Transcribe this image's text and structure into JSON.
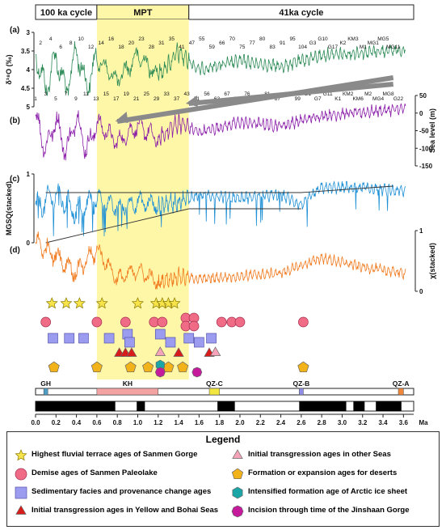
{
  "header": {
    "cycles": [
      {
        "label": "100 ka cycle",
        "range": [
          0.0,
          0.6
        ]
      },
      {
        "label": "MPT",
        "range": [
          0.6,
          1.5
        ]
      },
      {
        "label": "41ka cycle",
        "range": [
          1.5,
          3.7
        ]
      }
    ]
  },
  "highlight": {
    "x_range": [
      0.6,
      1.5
    ],
    "color": "#fff7a8"
  },
  "chart_data": [
    {
      "id": "a",
      "panel_label": "(a)",
      "type": "line",
      "ylabel": "δ¹⁸O (‰)",
      "yticks": [
        "3",
        "3.5",
        "4",
        "4.5",
        "5"
      ],
      "ylim_reversed": [
        2.6,
        5.2
      ],
      "color": "#2e8b57",
      "mis_labels": [
        "1",
        "2",
        "3",
        "4",
        "5",
        "6",
        "7",
        "8",
        "9",
        "10",
        "11",
        "12",
        "13",
        "14",
        "15",
        "16",
        "17",
        "18",
        "19",
        "20",
        "21",
        "23",
        "25",
        "28",
        "29",
        "31",
        "33",
        "35",
        "37",
        "41",
        "43",
        "47",
        "51",
        "55",
        "56",
        "59",
        "63",
        "66",
        "67",
        "70",
        "71",
        "75",
        "76",
        "77",
        "79",
        "80",
        "81",
        "83",
        "87",
        "91",
        "94",
        "95",
        "99",
        "104",
        "G1",
        "G3",
        "G7",
        "G10",
        "G11",
        "G17",
        "K1",
        "K2",
        "KM2",
        "KM3",
        "KM6",
        "M1",
        "M2",
        "MG1",
        "MG4",
        "MG5",
        "MG8",
        "MG11",
        "G22"
      ],
      "series_sample": [
        [
          0.0,
          3.3
        ],
        [
          0.1,
          4.6
        ],
        [
          0.2,
          3.4
        ],
        [
          0.3,
          4.7
        ],
        [
          0.4,
          3.2
        ],
        [
          0.5,
          4.5
        ],
        [
          0.6,
          3.5
        ],
        [
          0.8,
          4.3
        ],
        [
          1.0,
          3.4
        ],
        [
          1.2,
          4.1
        ],
        [
          1.4,
          3.3
        ],
        [
          1.6,
          3.9
        ],
        [
          2.0,
          3.6
        ],
        [
          2.4,
          3.8
        ],
        [
          2.8,
          3.4
        ],
        [
          3.2,
          3.3
        ],
        [
          3.6,
          3.2
        ]
      ]
    },
    {
      "id": "b",
      "panel_label": "(b)",
      "type": "line",
      "ylabel": "Sea level (m)",
      "yticks": [
        "50",
        "0",
        "-50",
        "-100",
        "-150"
      ],
      "ylim": [
        -160,
        50
      ],
      "color": "#8b1fa9",
      "series_sample": [
        [
          0.0,
          -10
        ],
        [
          0.1,
          -110
        ],
        [
          0.2,
          -20
        ],
        [
          0.3,
          -120
        ],
        [
          0.4,
          -10
        ],
        [
          0.5,
          -115
        ],
        [
          0.6,
          -30
        ],
        [
          0.8,
          -90
        ],
        [
          1.0,
          -40
        ],
        [
          1.2,
          -80
        ],
        [
          1.4,
          -30
        ],
        [
          1.6,
          -60
        ],
        [
          2.0,
          -30
        ],
        [
          2.4,
          -40
        ],
        [
          2.8,
          -10
        ],
        [
          3.2,
          0
        ],
        [
          3.6,
          10
        ]
      ]
    },
    {
      "id": "c",
      "panel_label": "(c)",
      "type": "line",
      "ylabel": "MGSQ(stacked)",
      "yticks": [
        "1",
        "0"
      ],
      "ylim": [
        0,
        1
      ],
      "color": "#1e90d6",
      "trend_color": "#333333",
      "series_sample": [
        [
          0.0,
          0.5
        ],
        [
          0.2,
          0.7
        ],
        [
          0.4,
          0.45
        ],
        [
          0.6,
          0.65
        ],
        [
          0.8,
          0.5
        ],
        [
          1.0,
          0.6
        ],
        [
          1.2,
          0.55
        ],
        [
          1.4,
          0.6
        ],
        [
          1.6,
          0.7
        ],
        [
          2.0,
          0.65
        ],
        [
          2.4,
          0.7
        ],
        [
          2.6,
          0.55
        ],
        [
          2.8,
          0.8
        ],
        [
          3.2,
          0.8
        ],
        [
          3.6,
          0.75
        ]
      ]
    },
    {
      "id": "d",
      "panel_label": "(d)",
      "type": "line",
      "ylabel": "χ(stacked)",
      "yticks": [
        "1",
        "0"
      ],
      "ylim": [
        0,
        1
      ],
      "color": "#f07a1e",
      "series_sample": [
        [
          0.0,
          0.8
        ],
        [
          0.2,
          0.6
        ],
        [
          0.4,
          0.3
        ],
        [
          0.6,
          0.7
        ],
        [
          0.8,
          0.2
        ],
        [
          1.0,
          0.35
        ],
        [
          1.2,
          0.15
        ],
        [
          1.4,
          0.25
        ],
        [
          1.6,
          0.2
        ],
        [
          2.0,
          0.25
        ],
        [
          2.4,
          0.3
        ],
        [
          2.8,
          0.55
        ],
        [
          3.2,
          0.4
        ],
        [
          3.6,
          0.3
        ]
      ]
    }
  ],
  "events": {
    "terrace": {
      "color": "#f7e34a",
      "ages": [
        0.16,
        0.3,
        0.43,
        0.65,
        1.0,
        1.18,
        1.24,
        1.3,
        1.36
      ]
    },
    "paleolake": {
      "color": "#ef6b86",
      "ages": [
        [
          0.1,
          0
        ],
        [
          0.6,
          0
        ],
        [
          0.88,
          0
        ],
        [
          1.16,
          0
        ],
        [
          1.24,
          0
        ],
        [
          1.47,
          -1
        ],
        [
          1.47,
          1
        ],
        [
          1.55,
          -1
        ],
        [
          1.55,
          1
        ],
        [
          1.82,
          0
        ],
        [
          1.92,
          0
        ],
        [
          2.0,
          0
        ],
        [
          2.62,
          0
        ]
      ]
    },
    "facies": {
      "color": "#9b9cf0",
      "ages": [
        [
          0.17,
          0
        ],
        [
          0.33,
          0
        ],
        [
          0.47,
          0
        ],
        [
          0.72,
          0
        ],
        [
          0.9,
          -1
        ],
        [
          0.92,
          1
        ],
        [
          1.22,
          -1
        ],
        [
          1.32,
          1
        ],
        [
          1.5,
          0
        ],
        [
          1.6,
          1
        ],
        [
          1.72,
          0
        ]
      ]
    },
    "yellow_bohai": {
      "color": "#d81b1b",
      "ages": [
        0.82,
        0.88,
        0.94,
        1.4,
        1.7
      ]
    },
    "other_seas": {
      "color": "#f4a3b8",
      "ages": [
        1.22,
        1.76
      ]
    },
    "deserts": {
      "color": "#f2b21a",
      "ages": [
        0.18,
        0.6,
        0.93,
        1.1,
        1.3,
        1.44,
        2.62
      ]
    },
    "arctic": {
      "color": "#1aa6a6",
      "ages": [
        1.22
      ]
    },
    "jinshaan": {
      "color": "#c51a9c",
      "ages": [
        1.22,
        1.58
      ]
    }
  },
  "units": {
    "labels": [
      {
        "name": "GH",
        "bar_range": [
          0.08,
          0.12
        ],
        "color": "#4f9ec7"
      },
      {
        "name": "KH",
        "bar_range": [
          0.6,
          1.2
        ],
        "color": "#f4a3a3"
      },
      {
        "name": "QZ-C",
        "bar_range": [
          1.7,
          1.8
        ],
        "color": "#f2e640"
      },
      {
        "name": "QZ-B",
        "bar_range": [
          2.58,
          2.62
        ],
        "color": "#8e8ee8"
      },
      {
        "name": "QZ-A",
        "bar_range": [
          3.55,
          3.6
        ],
        "color": "#f0863a"
      }
    ]
  },
  "polarity": {
    "black_intervals": [
      [
        0.0,
        0.78
      ],
      [
        0.99,
        1.07
      ],
      [
        1.78,
        1.95
      ],
      [
        2.58,
        3.04
      ],
      [
        3.11,
        3.22
      ],
      [
        3.33,
        3.58
      ]
    ]
  },
  "xaxis": {
    "ticks": [
      "0.0",
      "0.2",
      "0.4",
      "0.6",
      "0.8",
      "1.0",
      "1.2",
      "1.4",
      "1.6",
      "1.8",
      "2.0",
      "2.2",
      "2.4",
      "2.6",
      "2.8",
      "3.0",
      "3.2",
      "3.4",
      "3.6"
    ],
    "unit": "Ma",
    "range": [
      0,
      3.7
    ]
  },
  "legend": {
    "title": "Legend",
    "items": [
      {
        "key": "terrace",
        "label": "Highest fluvial terrace ages of Sanmen Gorge",
        "shape": "star",
        "color": "#f7e34a"
      },
      {
        "key": "other_seas",
        "label": "Initial transgression ages in other Seas",
        "shape": "triangle",
        "color": "#f4a3b8"
      },
      {
        "key": "paleolake",
        "label": "Demise ages of Sanmen Paleolake",
        "shape": "circle",
        "color": "#ef6b86"
      },
      {
        "key": "deserts",
        "label": "Formation or expansion ages for deserts",
        "shape": "pentagon",
        "color": "#f2b21a"
      },
      {
        "key": "facies",
        "label": "Sedimentary facies and provenance change ages",
        "shape": "square",
        "color": "#9b9cf0"
      },
      {
        "key": "arctic",
        "label": "Intensified formation age of Arctic ice sheet",
        "shape": "hexagon",
        "color": "#1aa6a6"
      },
      {
        "key": "yellow_bohai",
        "label": "Initial transgression ages in Yellow and Bohai Seas",
        "shape": "triangle",
        "color": "#d81b1b"
      },
      {
        "key": "jinshaan",
        "label": "Incision through time of the Jinshaan Gorge",
        "shape": "octagon",
        "color": "#c51a9c"
      }
    ]
  }
}
